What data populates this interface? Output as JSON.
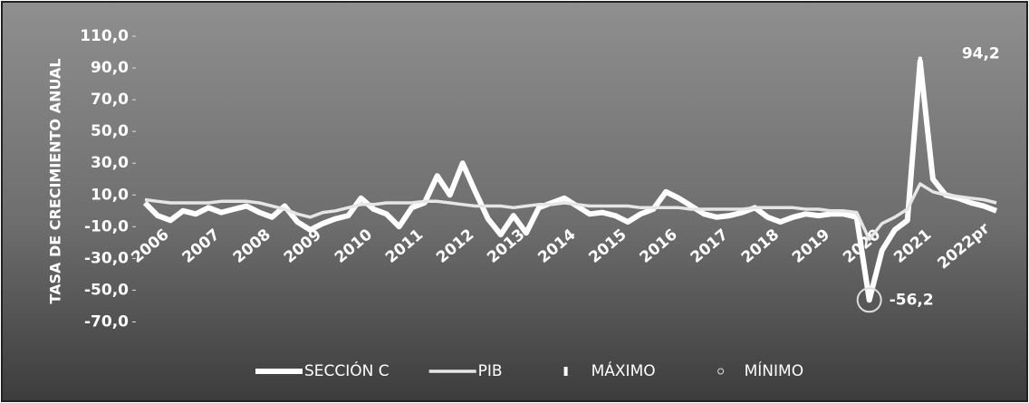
{
  "chart_data": {
    "type": "line",
    "y_label": "TASA DE CRECIMIENTO ANUAL",
    "categories": [
      "2006",
      null,
      null,
      null,
      "2007",
      null,
      null,
      null,
      "2008",
      null,
      null,
      null,
      "2009",
      null,
      null,
      null,
      "2010",
      null,
      null,
      null,
      "2011",
      null,
      null,
      null,
      "2012",
      null,
      null,
      null,
      "2013",
      null,
      null,
      null,
      "2014",
      null,
      null,
      null,
      "2015",
      null,
      null,
      null,
      "2016",
      null,
      null,
      null,
      "2017",
      null,
      null,
      null,
      "2018",
      null,
      null,
      null,
      "2019",
      null,
      null,
      null,
      "2020",
      null,
      null,
      null,
      "2021",
      null,
      null,
      null,
      "2022pr",
      null,
      null,
      null
    ],
    "series": [
      {
        "name": "SECCIÓN C",
        "color": "#ffffff",
        "values": [
          5,
          -3,
          -6,
          0,
          -2,
          2,
          -1,
          1,
          3,
          -1,
          -4,
          3,
          -7,
          -12,
          -8,
          -5,
          -3,
          8,
          1,
          -2,
          -10,
          2,
          5,
          22,
          10,
          30,
          12,
          -5,
          -15,
          -3,
          -14,
          2,
          5,
          8,
          3,
          -2,
          -1,
          -3,
          -7,
          -2,
          1,
          12,
          8,
          3,
          -2,
          -4,
          -3,
          -1,
          2,
          -4,
          -7,
          -4,
          -2,
          -3,
          -2,
          -2,
          -4,
          -56.2,
          -25,
          -12,
          -6,
          94.2,
          20,
          10,
          8,
          5,
          3,
          0
        ]
      },
      {
        "name": "PIB",
        "color": "#e6e6e6",
        "values": [
          7,
          6,
          5,
          5,
          5,
          5,
          6,
          6,
          6,
          5,
          3,
          1,
          -2,
          -4,
          -1,
          0,
          2,
          4,
          4,
          5,
          5,
          5,
          6,
          6,
          5,
          4,
          3,
          3,
          3,
          2,
          3,
          4,
          4,
          5,
          4,
          3,
          3,
          3,
          3,
          2,
          2,
          2,
          2,
          1,
          1,
          1,
          1,
          1,
          2,
          2,
          2,
          2,
          1,
          1,
          0,
          0,
          -1,
          -18,
          -8,
          -4,
          1,
          17,
          12,
          10,
          9,
          8,
          7,
          5
        ]
      },
      {
        "name": "MÁXIMO",
        "color": "#ffffff",
        "values": [
          null,
          null,
          null,
          null,
          null,
          null,
          null,
          null,
          null,
          null,
          null,
          null,
          null,
          null,
          null,
          null,
          null,
          null,
          null,
          null,
          null,
          null,
          null,
          null,
          null,
          null,
          null,
          null,
          null,
          null,
          null,
          null,
          null,
          null,
          null,
          null,
          null,
          null,
          null,
          null,
          null,
          null,
          null,
          null,
          null,
          null,
          null,
          null,
          null,
          null,
          null,
          null,
          null,
          null,
          null,
          null,
          null,
          null,
          null,
          null,
          null,
          94.2,
          null,
          null,
          null,
          null,
          null,
          null
        ],
        "value_labels": [
          null,
          null,
          null,
          null,
          null,
          null,
          null,
          null,
          null,
          null,
          null,
          null,
          null,
          null,
          null,
          null,
          null,
          null,
          null,
          null,
          null,
          null,
          null,
          null,
          null,
          null,
          null,
          null,
          null,
          null,
          null,
          null,
          null,
          null,
          null,
          null,
          null,
          null,
          null,
          null,
          null,
          null,
          null,
          null,
          null,
          null,
          null,
          null,
          null,
          null,
          null,
          null,
          null,
          null,
          null,
          null,
          null,
          null,
          null,
          null,
          null,
          "94,2",
          null,
          null,
          null,
          null,
          null,
          null
        ]
      },
      {
        "name": "MÍNIMO",
        "color": "#dddddd",
        "values": [
          null,
          null,
          null,
          null,
          null,
          null,
          null,
          null,
          null,
          null,
          null,
          null,
          null,
          null,
          null,
          null,
          null,
          null,
          null,
          null,
          null,
          null,
          null,
          null,
          null,
          null,
          null,
          null,
          null,
          null,
          null,
          null,
          null,
          null,
          null,
          null,
          null,
          null,
          null,
          null,
          null,
          null,
          null,
          null,
          null,
          null,
          null,
          null,
          null,
          null,
          null,
          null,
          null,
          null,
          null,
          null,
          null,
          -56.2,
          null,
          null,
          null,
          null,
          null,
          null,
          null,
          null,
          null,
          null
        ],
        "value_labels": [
          null,
          null,
          null,
          null,
          null,
          null,
          null,
          null,
          null,
          null,
          null,
          null,
          null,
          null,
          null,
          null,
          null,
          null,
          null,
          null,
          null,
          null,
          null,
          null,
          null,
          null,
          null,
          null,
          null,
          null,
          null,
          null,
          null,
          null,
          null,
          null,
          null,
          null,
          null,
          null,
          null,
          null,
          null,
          null,
          null,
          null,
          null,
          null,
          null,
          null,
          null,
          null,
          null,
          null,
          null,
          null,
          null,
          "-56,2",
          null,
          null,
          null,
          null,
          null,
          null,
          null,
          null,
          null,
          null
        ]
      }
    ],
    "ylim": [
      -80,
      118
    ],
    "yticks": [
      {
        "value": 110,
        "label": "110,0"
      },
      {
        "value": 90,
        "label": "90,0"
      },
      {
        "value": 70,
        "label": "70,0"
      },
      {
        "value": 50,
        "label": "50,0"
      },
      {
        "value": 30,
        "label": "30,0"
      },
      {
        "value": 10,
        "label": "10,0"
      },
      {
        "value": -10,
        "label": "-10,0"
      },
      {
        "value": -30,
        "label": "-30,0"
      },
      {
        "value": -50,
        "label": "-50,0"
      },
      {
        "value": -70,
        "label": "-70,0"
      }
    ],
    "grid": false,
    "legend": "bottom"
  }
}
